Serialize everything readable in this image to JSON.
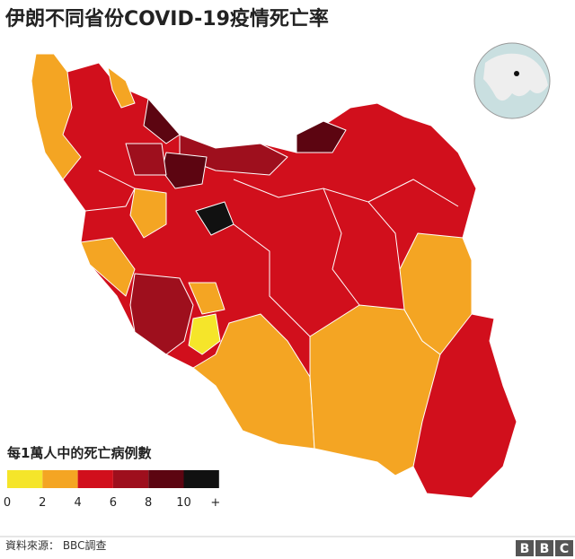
{
  "title": "伊朗不同省份COVID-19疫情死亡率",
  "legend": {
    "title": "每1萬人中的死亡病例數",
    "colors": [
      "#f5e52a",
      "#f4a523",
      "#d10f1c",
      "#9e0f1d",
      "#5c0511",
      "#111111"
    ],
    "tick_labels": [
      "0",
      "2",
      "4",
      "6",
      "8",
      "10",
      "+"
    ]
  },
  "source": "資料來源： BBC調查",
  "logo": [
    "B",
    "B",
    "C"
  ]
}
